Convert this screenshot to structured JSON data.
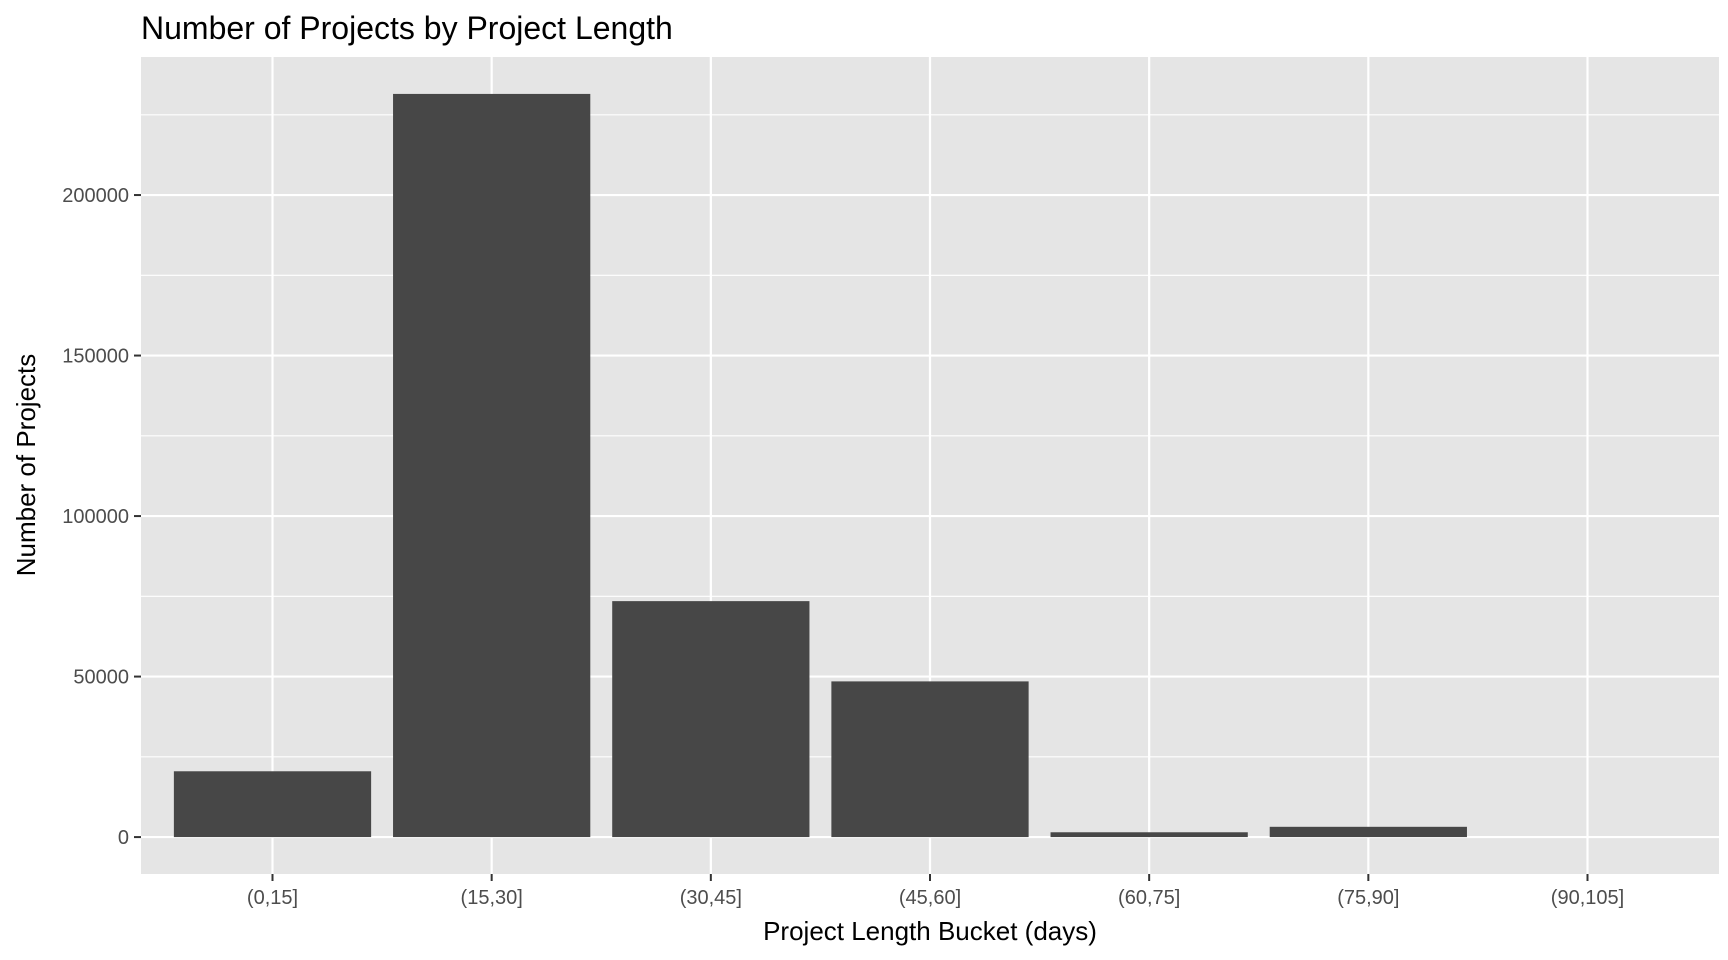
{
  "chart_data": {
    "type": "bar",
    "title": "Number of Projects by Project Length",
    "xlabel": "Project Length Bucket (days)",
    "ylabel": "Number of Projects",
    "categories": [
      "(0,15]",
      "(15,30]",
      "(30,45]",
      "(45,60]",
      "(60,75]",
      "(75,90]",
      "(90,105]"
    ],
    "values": [
      20500,
      231500,
      73500,
      48500,
      1500,
      3200,
      0
    ],
    "ylim": [
      -11500,
      243000
    ],
    "yticks": [
      0,
      50000,
      100000,
      150000,
      200000
    ],
    "ytick_labels": [
      "0",
      "50000",
      "100000",
      "150000",
      "200000"
    ],
    "grid": true,
    "legend": "none",
    "colors": {
      "bar": "#474747",
      "panel": "#e5e5e5",
      "grid": "#ffffff",
      "tick": "#333333"
    }
  }
}
